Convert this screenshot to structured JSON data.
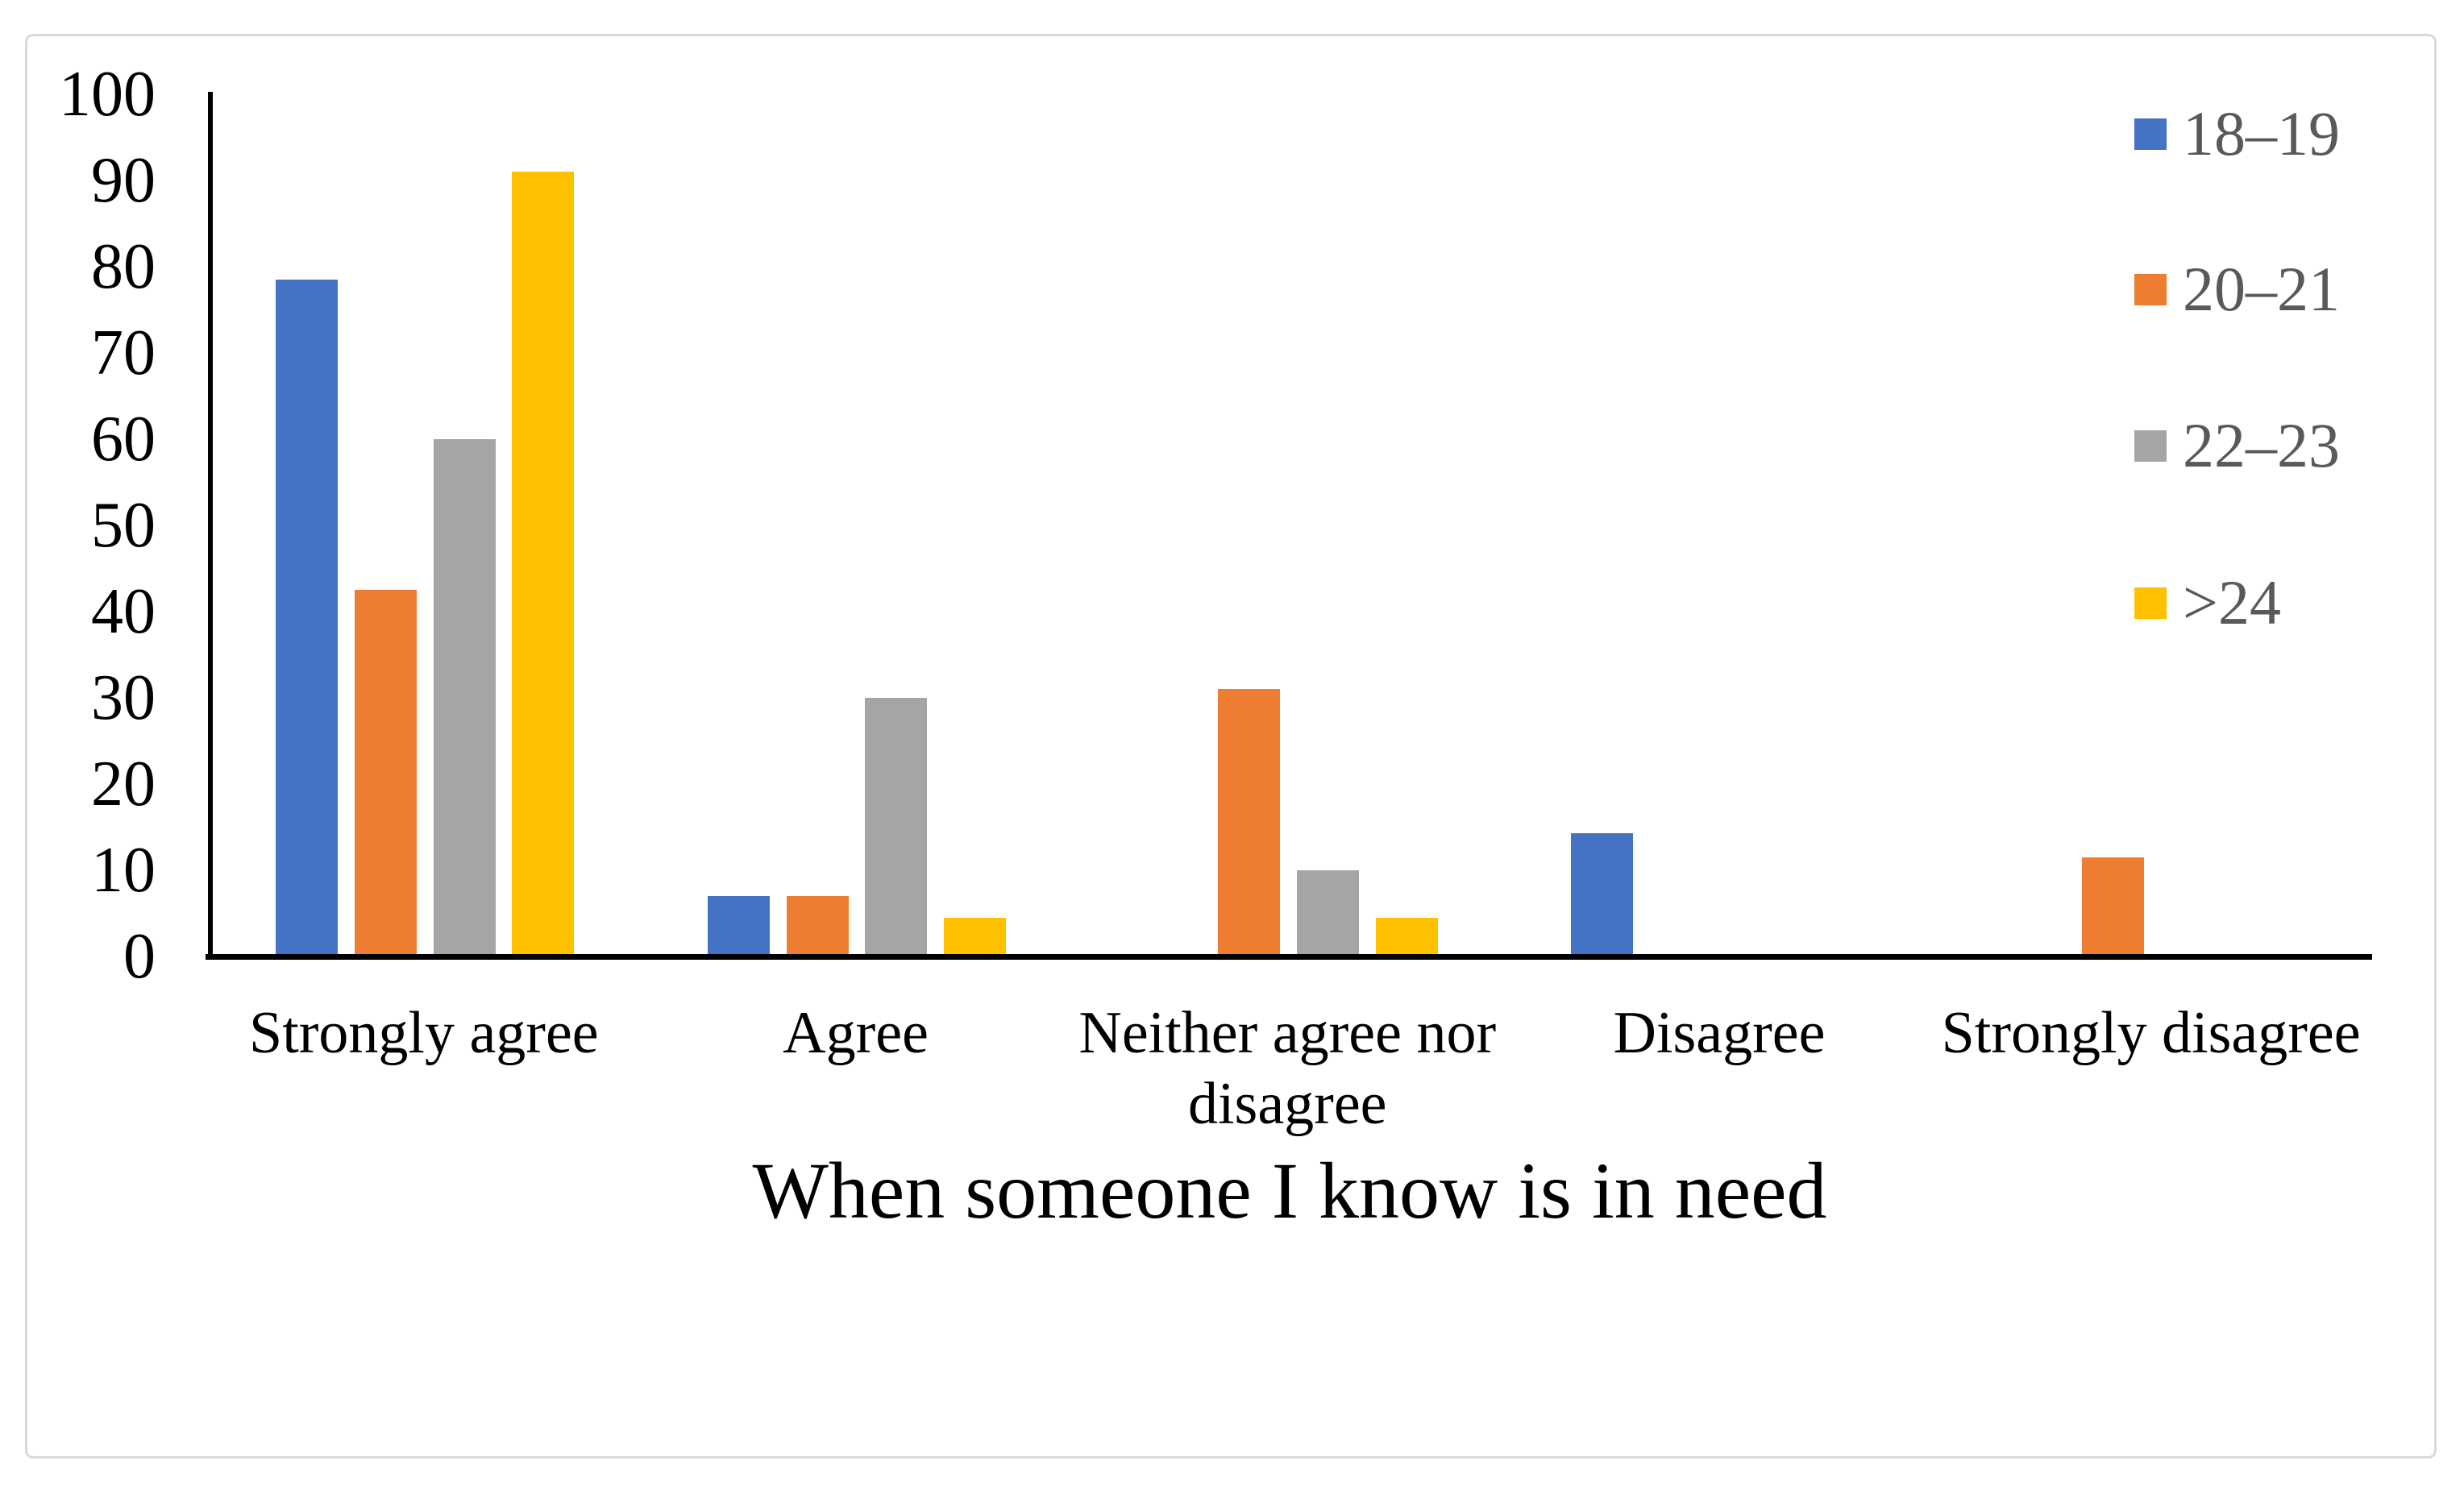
{
  "chart_data": {
    "type": "bar",
    "title": "When someone I know is in need",
    "title_position": "bottom",
    "categories": [
      "Strongly agree",
      "Agree",
      "Neither agree nor disagree",
      "Disagree",
      "Strongly disagree"
    ],
    "series": [
      {
        "name": "18–19",
        "color": "#4472C4",
        "values": [
          78.5,
          7,
          0,
          14.3,
          0
        ]
      },
      {
        "name": "20–21",
        "color": "#ED7D31",
        "values": [
          42.5,
          7,
          31,
          0,
          11.5
        ]
      },
      {
        "name": "22–23",
        "color": "#A5A5A5",
        "values": [
          60,
          30,
          10,
          0,
          0
        ]
      },
      {
        "name": ">24",
        "color": "#FFC000",
        "values": [
          91,
          4.5,
          4.5,
          0,
          0
        ]
      }
    ],
    "ylim": [
      0,
      100
    ],
    "yticks": [
      0,
      10,
      20,
      30,
      40,
      50,
      60,
      70,
      80,
      90,
      100
    ],
    "grid": false,
    "legend_position": "top-right",
    "axis_color": "#000000",
    "legend_text_color": "#595959",
    "frame_border_color": "#D9D9D9"
  }
}
